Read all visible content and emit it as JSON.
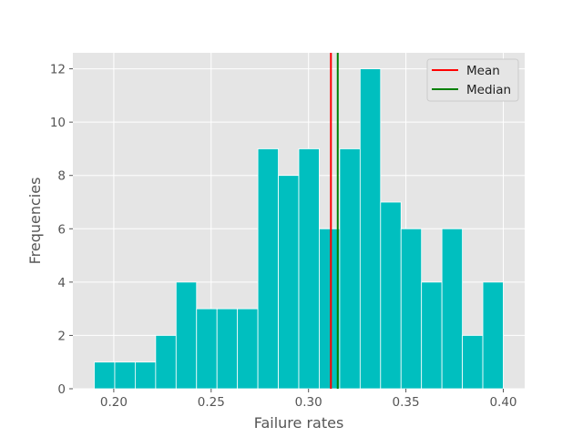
{
  "chart_data": {
    "type": "bar",
    "subtype": "histogram",
    "title": "",
    "xlabel": "Failure rates",
    "ylabel": "Frequencies",
    "xlim": [
      0.179,
      0.411
    ],
    "ylim": [
      0,
      12.6
    ],
    "grid": true,
    "legend_position": "top-right",
    "bin_width": 0.0105,
    "bin_edges": [
      0.19,
      0.2005,
      0.211,
      0.2215,
      0.232,
      0.2425,
      0.253,
      0.2635,
      0.274,
      0.2845,
      0.295,
      0.3055,
      0.316,
      0.3265,
      0.337,
      0.3475,
      0.358,
      0.3685,
      0.379,
      0.3895,
      0.4
    ],
    "values": [
      1,
      1,
      1,
      2,
      4,
      3,
      3,
      3,
      9,
      8,
      9,
      6,
      9,
      12,
      7,
      6,
      4,
      6,
      2,
      4
    ],
    "x_ticks": [
      "0.20",
      "0.25",
      "0.30",
      "0.35",
      "0.40"
    ],
    "x_tick_values": [
      0.2,
      0.25,
      0.3,
      0.35,
      0.4
    ],
    "y_ticks": [
      "0",
      "2",
      "4",
      "6",
      "8",
      "10",
      "12"
    ],
    "y_tick_values": [
      0,
      2,
      4,
      6,
      8,
      10,
      12
    ],
    "lines": [
      {
        "name": "Mean",
        "x": 0.3115,
        "color": "#ff0000"
      },
      {
        "name": "Median",
        "x": 0.315,
        "color": "#008000"
      }
    ],
    "colors": {
      "bars": "#00bfbf",
      "plot_bg": "#e5e5e5",
      "grid": "#ffffff"
    }
  }
}
